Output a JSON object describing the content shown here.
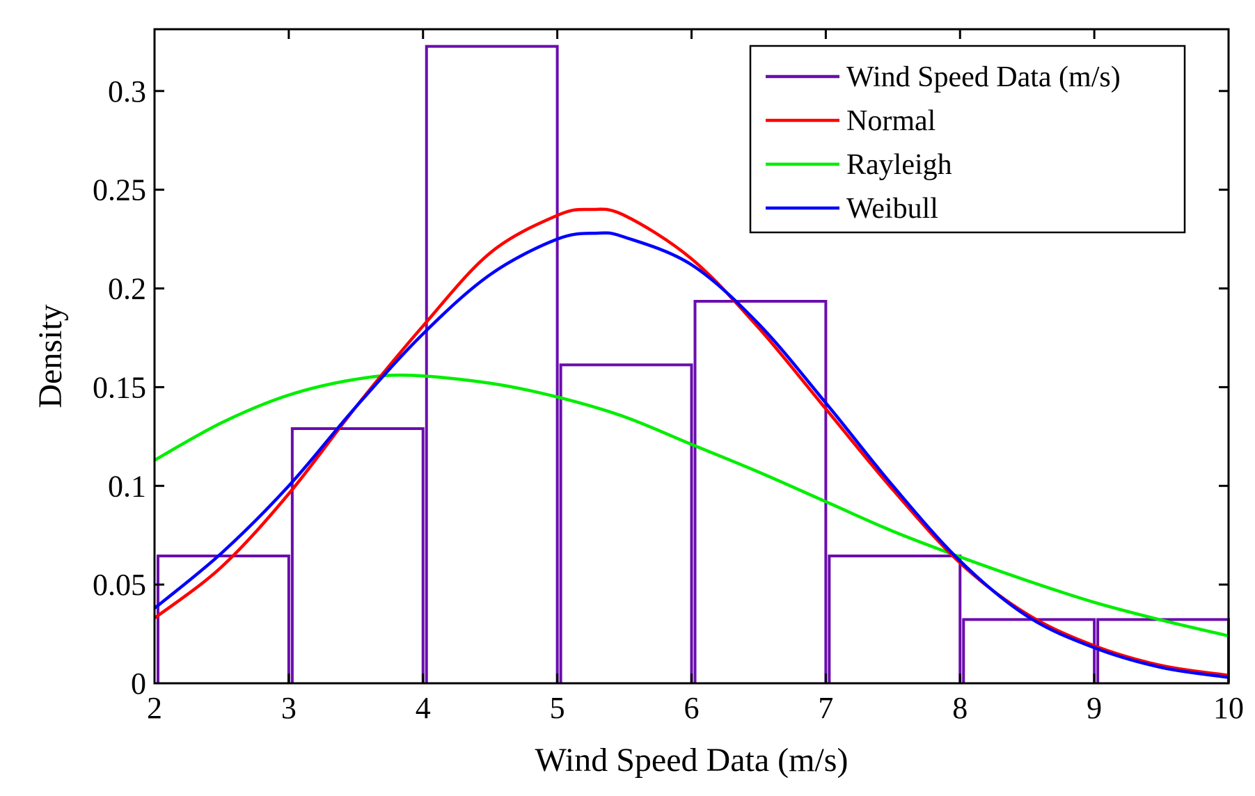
{
  "chart_data": {
    "type": "histogram-with-fits",
    "title": "",
    "xlabel": "Wind Speed Data (m/s)",
    "ylabel": "Density",
    "xlim": [
      2,
      10
    ],
    "ylim": [
      0,
      0.3313
    ],
    "xticks": [
      2,
      3,
      4,
      5,
      6,
      7,
      8,
      9,
      10
    ],
    "xtick_labels": [
      "2",
      "3",
      "4",
      "5",
      "6",
      "7",
      "8",
      "9",
      "10"
    ],
    "yticks": [
      0,
      0.05,
      0.1,
      0.15,
      0.2,
      0.25,
      0.3
    ],
    "ytick_labels": [
      "0",
      "0.05",
      "0.1",
      "0.15",
      "0.2",
      "0.25",
      "0.3"
    ],
    "legend_position": "top-right",
    "histogram": {
      "name": "Wind Speed Data (m/s)",
      "color": "#6a0dad",
      "bin_edges": [
        2,
        3,
        4,
        5,
        6,
        7,
        8,
        9,
        10
      ],
      "values": [
        0.0645,
        0.129,
        0.3226,
        0.1613,
        0.1935,
        0.0645,
        0.0323,
        0.0323
      ]
    },
    "series": [
      {
        "name": "Normal",
        "color": "#ff0000",
        "x": [
          2,
          2.5,
          3,
          3.5,
          4,
          4.5,
          5,
          5.25,
          5.5,
          6,
          6.5,
          7,
          7.5,
          8,
          8.5,
          9,
          9.5,
          10
        ],
        "values": [
          0.033,
          0.059,
          0.096,
          0.14,
          0.181,
          0.218,
          0.237,
          0.24,
          0.237,
          0.215,
          0.18,
          0.139,
          0.098,
          0.061,
          0.035,
          0.019,
          0.009,
          0.004
        ]
      },
      {
        "name": "Rayleigh",
        "color": "#00ee00",
        "x": [
          2,
          2.5,
          3,
          3.5,
          3.9,
          4.5,
          5,
          5.5,
          6,
          6.5,
          7,
          7.5,
          8,
          8.5,
          9,
          9.5,
          10
        ],
        "values": [
          0.113,
          0.132,
          0.146,
          0.154,
          0.156,
          0.152,
          0.145,
          0.135,
          0.121,
          0.107,
          0.092,
          0.077,
          0.064,
          0.052,
          0.041,
          0.032,
          0.024
        ]
      },
      {
        "name": "Weibull",
        "color": "#0000ff",
        "x": [
          2,
          2.5,
          3,
          3.5,
          4,
          4.5,
          5,
          5.3,
          5.5,
          6,
          6.5,
          7,
          7.5,
          8,
          8.5,
          9,
          9.5,
          10
        ],
        "values": [
          0.038,
          0.066,
          0.1,
          0.14,
          0.177,
          0.207,
          0.225,
          0.228,
          0.226,
          0.212,
          0.182,
          0.142,
          0.1,
          0.062,
          0.034,
          0.018,
          0.008,
          0.003
        ]
      }
    ]
  }
}
